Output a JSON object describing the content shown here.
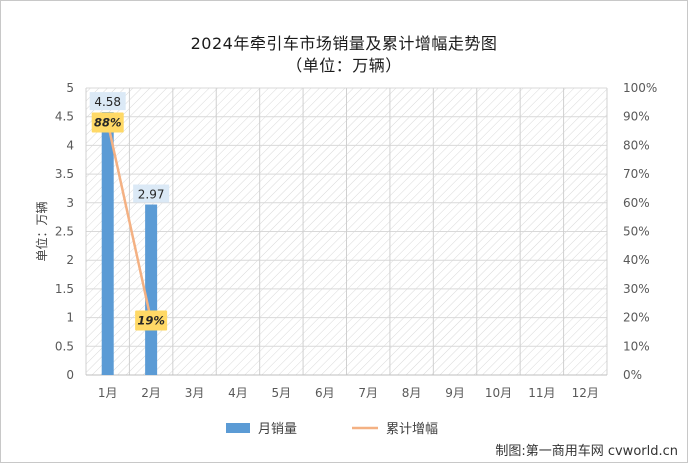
{
  "chart_data": {
    "type": "bar",
    "title": "2024年牵引车市场销量及累计增幅走势图",
    "subtitle": "（单位：万辆）",
    "categories": [
      "1月",
      "2月",
      "3月",
      "4月",
      "5月",
      "6月",
      "7月",
      "8月",
      "9月",
      "10月",
      "11月",
      "12月"
    ],
    "series": [
      {
        "name": "月销量",
        "type": "bar",
        "axis": "left",
        "color": "#5b9bd5",
        "values": [
          4.58,
          2.97,
          null,
          null,
          null,
          null,
          null,
          null,
          null,
          null,
          null,
          null
        ],
        "labels": [
          "4.58",
          "2.97"
        ]
      },
      {
        "name": "累计增幅",
        "type": "line",
        "axis": "right",
        "color": "#f4b183",
        "values": [
          88,
          19,
          null,
          null,
          null,
          null,
          null,
          null,
          null,
          null,
          null,
          null
        ],
        "labels": [
          "88%",
          "19%"
        ]
      }
    ],
    "ylabel": "单位：万辆",
    "ylim": [
      0,
      5
    ],
    "yticks": [
      "0",
      "0.5",
      "1",
      "1.5",
      "2",
      "2.5",
      "3",
      "3.5",
      "4",
      "4.5",
      "5"
    ],
    "y2lim": [
      0,
      100
    ],
    "y2ticks": [
      "0%",
      "10%",
      "20%",
      "30%",
      "40%",
      "50%",
      "60%",
      "70%",
      "80%",
      "90%",
      "100%"
    ],
    "grid": true,
    "legend": "bottom"
  },
  "credit": "制图:第一商用车网 cvworld.cn"
}
